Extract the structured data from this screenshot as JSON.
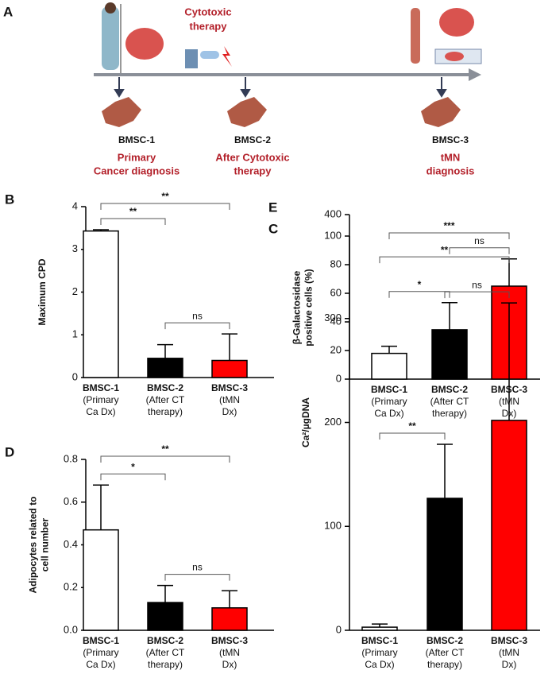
{
  "timeline": {
    "panel": "A",
    "therapy": [
      "Cytotoxic",
      "therapy"
    ],
    "stages": [
      {
        "label": "BMSC-1",
        "caption": [
          "Primary",
          "Cancer diagnosis"
        ]
      },
      {
        "label": "BMSC-2",
        "caption": [
          "After Cytotoxic",
          "therapy"
        ]
      },
      {
        "label": "BMSC-3",
        "caption": [
          "tMN",
          "diagnosis"
        ]
      }
    ]
  },
  "chart_data": [
    {
      "type": "bar",
      "panel": "B",
      "ylabel": [
        "Maximum CPD"
      ],
      "categories": [
        [
          "BMSC-1",
          "(Primary",
          "Ca Dx)"
        ],
        [
          "BMSC-2",
          "(After CT",
          "therapy)"
        ],
        [
          "BMSC-3",
          "(tMN",
          "Dx)"
        ]
      ],
      "values": [
        3.43,
        0.45,
        0.4
      ],
      "errors": [
        0.03,
        0.32,
        0.62
      ],
      "colors": [
        "#ffffff",
        "#000000",
        "#ff0000"
      ],
      "ylim": [
        0,
        4
      ],
      "yticks": [
        0,
        1,
        2,
        3,
        4
      ],
      "brackets": [
        {
          "between": [
            0,
            1
          ],
          "label": "**"
        },
        {
          "between": [
            0,
            2
          ],
          "label": "**"
        },
        {
          "between": [
            1,
            2
          ],
          "label": "ns"
        }
      ]
    },
    {
      "type": "bar",
      "panel": "C",
      "ylabel": [
        "β-Galactosidase",
        "positive cells (%)"
      ],
      "categories": [
        [
          "BMSC-1",
          "(Primary",
          "Ca Dx)"
        ],
        [
          "BMSC-2",
          "(After CT",
          "therapy)"
        ],
        [
          "BMSC-3",
          "(tMN",
          "Dx)"
        ]
      ],
      "values": [
        18,
        34.5,
        65
      ],
      "errors": [
        5,
        19,
        19
      ],
      "colors": [
        "#ffffff",
        "#000000",
        "#ff0000"
      ],
      "ylim": [
        0,
        100
      ],
      "yticks": [
        0,
        20,
        40,
        60,
        80,
        100
      ],
      "brackets": [
        {
          "between": [
            0,
            1
          ],
          "label": "*"
        },
        {
          "between": [
            0,
            2
          ],
          "label": "***"
        },
        {
          "between": [
            1,
            2
          ],
          "label": "ns"
        }
      ]
    },
    {
      "type": "bar",
      "panel": "D",
      "ylabel": [
        "Adipocytes related to",
        "cell number"
      ],
      "categories": [
        [
          "BMSC-1",
          "(Primary",
          "Ca Dx)"
        ],
        [
          "BMSC-2",
          "(After CT",
          "therapy)"
        ],
        [
          "BMSC-3",
          "(tMN",
          "Dx)"
        ]
      ],
      "values": [
        0.47,
        0.13,
        0.105
      ],
      "errors": [
        0.21,
        0.08,
        0.08
      ],
      "colors": [
        "#ffffff",
        "#000000",
        "#ff0000"
      ],
      "ylim": [
        0,
        0.8
      ],
      "yticks": [
        {
          "value": 0,
          "label": "0.0"
        },
        0.2,
        0.4,
        0.6,
        0.8
      ],
      "brackets": [
        {
          "between": [
            0,
            1
          ],
          "label": "*"
        },
        {
          "between": [
            0,
            2
          ],
          "label": "**"
        },
        {
          "between": [
            1,
            2
          ],
          "label": "ns"
        }
      ]
    },
    {
      "type": "bar",
      "panel": "E",
      "ylabel": [
        "Ca²/µgDNA"
      ],
      "categories": [
        [
          "BMSC-1",
          "(Primary",
          "Ca Dx)"
        ],
        [
          "BMSC-2",
          "(After CT",
          "therapy)"
        ],
        [
          "BMSC-3",
          "(tMN",
          "Dx)"
        ]
      ],
      "values": [
        3,
        127,
        202
      ],
      "errors": [
        3,
        52,
        113
      ],
      "colors": [
        "#ffffff",
        "#000000",
        "#ff0000"
      ],
      "ylim": [
        0,
        400
      ],
      "yticks": [
        0,
        100,
        200,
        300,
        400
      ],
      "brackets": [
        {
          "between": [
            0,
            1
          ],
          "label": "**"
        },
        {
          "between": [
            0,
            2
          ],
          "label": "**"
        },
        {
          "between": [
            1,
            2
          ],
          "label": "ns"
        }
      ]
    }
  ]
}
